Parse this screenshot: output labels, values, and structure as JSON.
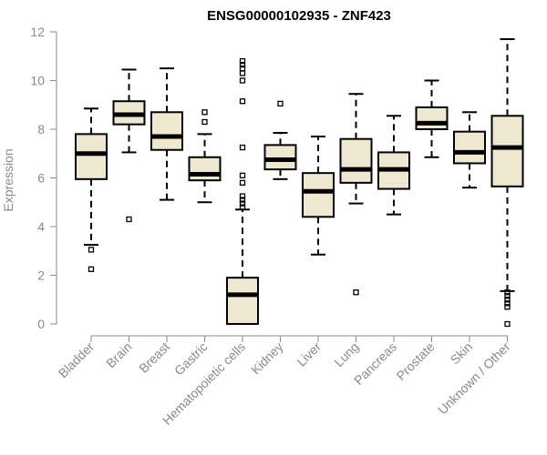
{
  "chart_data": {
    "type": "boxplot",
    "title": "ENSG00000102935 - ZNF423",
    "xlabel": "",
    "ylabel": "Expression",
    "ylim": [
      0,
      12
    ],
    "yticks": [
      0,
      2,
      4,
      6,
      8,
      10,
      12
    ],
    "colors": {
      "box_fill": "#eee8d0",
      "stroke": "#000000",
      "axis": "#8a8a8a"
    },
    "series": [
      {
        "name": "Bladder",
        "whisker_low": 3.25,
        "q1": 5.95,
        "median": 7.0,
        "q3": 7.8,
        "whisker_high": 8.85,
        "outliers": [
          3.05,
          2.25
        ]
      },
      {
        "name": "Brain",
        "whisker_low": 7.05,
        "q1": 8.2,
        "median": 8.6,
        "q3": 9.15,
        "whisker_high": 10.45,
        "outliers": [
          4.3
        ]
      },
      {
        "name": "Breast",
        "whisker_low": 5.1,
        "q1": 7.15,
        "median": 7.7,
        "q3": 8.7,
        "whisker_high": 10.5,
        "outliers": []
      },
      {
        "name": "Gastric",
        "whisker_low": 5.0,
        "q1": 5.9,
        "median": 6.15,
        "q3": 6.85,
        "whisker_high": 7.8,
        "outliers": [
          8.7,
          8.3
        ]
      },
      {
        "name": "Hematopoietic cells",
        "whisker_low": 0.0,
        "q1": 0.0,
        "median": 1.2,
        "q3": 1.9,
        "whisker_high": 4.7,
        "outliers": [
          4.8,
          4.95,
          5.1,
          5.25,
          5.8,
          6.1,
          7.25,
          9.15,
          10.0,
          10.3,
          10.5,
          10.65,
          10.8
        ]
      },
      {
        "name": "Kidney",
        "whisker_low": 5.95,
        "q1": 6.35,
        "median": 6.75,
        "q3": 7.35,
        "whisker_high": 7.85,
        "outliers": [
          9.05
        ]
      },
      {
        "name": "Liver",
        "whisker_low": 2.85,
        "q1": 4.4,
        "median": 5.45,
        "q3": 6.2,
        "whisker_high": 7.7,
        "outliers": []
      },
      {
        "name": "Lung",
        "whisker_low": 4.95,
        "q1": 5.8,
        "median": 6.35,
        "q3": 7.6,
        "whisker_high": 9.45,
        "outliers": [
          1.3
        ]
      },
      {
        "name": "Pancreas",
        "whisker_low": 4.5,
        "q1": 5.55,
        "median": 6.35,
        "q3": 7.05,
        "whisker_high": 8.55,
        "outliers": []
      },
      {
        "name": "Prostate",
        "whisker_low": 6.85,
        "q1": 8.0,
        "median": 8.25,
        "q3": 8.9,
        "whisker_high": 10.0,
        "outliers": []
      },
      {
        "name": "Skin",
        "whisker_low": 5.6,
        "q1": 6.6,
        "median": 7.05,
        "q3": 7.9,
        "whisker_high": 8.7,
        "outliers": []
      },
      {
        "name": "Unknown / Other",
        "whisker_low": 1.35,
        "q1": 5.65,
        "median": 7.25,
        "q3": 8.55,
        "whisker_high": 11.7,
        "outliers": [
          1.3,
          1.15,
          1.0,
          0.85,
          0.7,
          0.0
        ]
      }
    ]
  }
}
